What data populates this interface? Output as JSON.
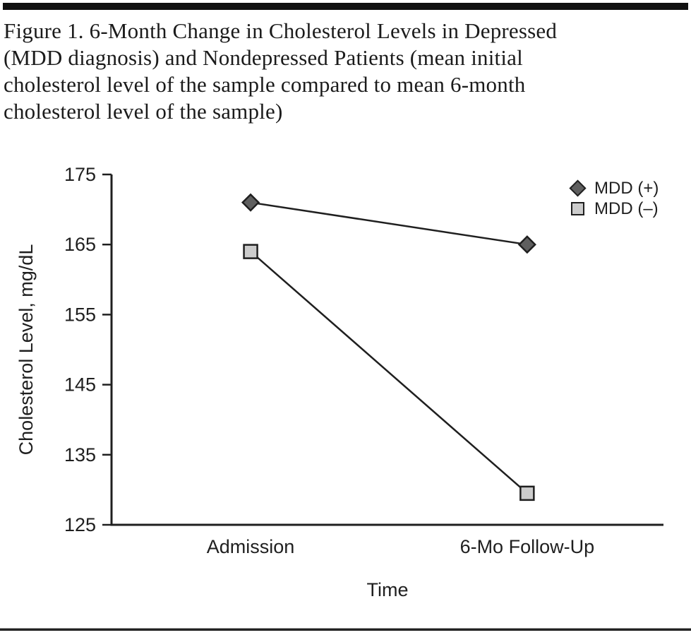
{
  "figure": {
    "title_lines": [
      "Figure 1. 6-Month Change in Cholesterol Levels in Depressed",
      "(MDD diagnosis) and Nondepressed Patients (mean initial",
      "cholesterol level of the sample compared to mean 6-month",
      "cholesterol level of the sample)"
    ]
  },
  "chart_data": {
    "type": "line",
    "title": "Figure 1. 6-Month Change in Cholesterol Levels in Depressed (MDD diagnosis) and Nondepressed Patients (mean initial cholesterol level of the sample compared to mean 6-month cholesterol level of the sample)",
    "categories": [
      "Admission",
      "6-Mo Follow-Up"
    ],
    "series": [
      {
        "name": "MDD (+)",
        "values": [
          171,
          165
        ],
        "marker": "diamond",
        "marker_fill": "#5f5f5f"
      },
      {
        "name": "MDD (–)",
        "values": [
          164,
          129.5
        ],
        "marker": "square",
        "marker_fill": "#cccccc"
      }
    ],
    "xlabel": "Time",
    "ylabel": "Cholesterol Level, mg/dL",
    "ylim": [
      125,
      175
    ],
    "yticks": [
      175,
      165,
      155,
      145,
      135,
      125
    ],
    "grid": false,
    "legend_position": "top-right",
    "axis_color": "#1f1f1f",
    "text_color": "#1f1f1f",
    "line_color": "#1f1f1f",
    "marker_stroke": "#1f1f1f"
  }
}
